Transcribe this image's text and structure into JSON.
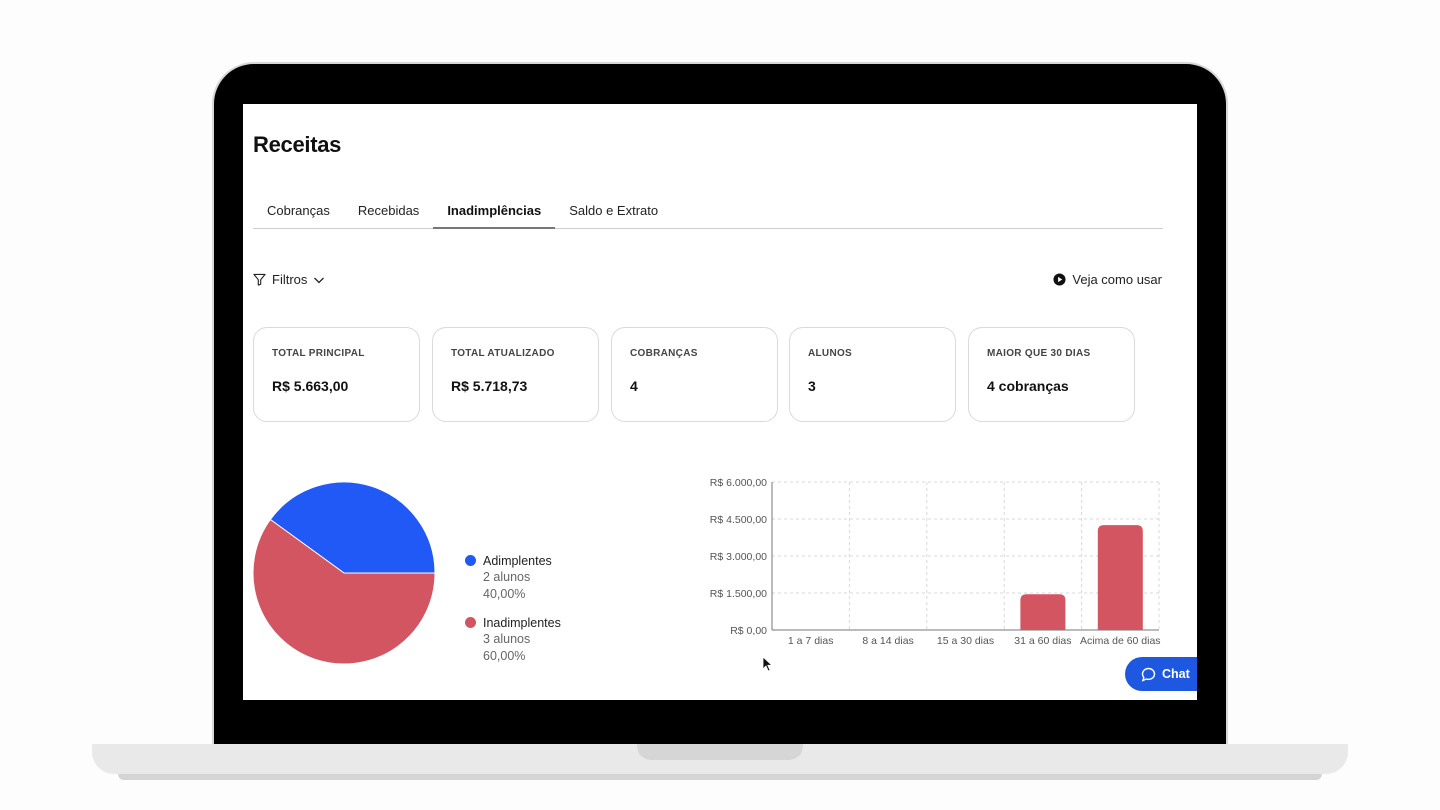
{
  "page": {
    "title": "Receitas",
    "tabs": [
      {
        "label": "Cobranças"
      },
      {
        "label": "Recebidas"
      },
      {
        "label": "Inadimplências",
        "active": true
      },
      {
        "label": "Saldo e Extrato"
      }
    ],
    "filters_label": "Filtros",
    "howto_label": "Veja como usar",
    "chat_label": "Chat"
  },
  "cards": [
    {
      "label": "TOTAL PRINCIPAL",
      "value": "R$ 5.663,00"
    },
    {
      "label": "TOTAL ATUALIZADO",
      "value": "R$ 5.718,73"
    },
    {
      "label": "COBRANÇAS",
      "value": "4"
    },
    {
      "label": "ALUNOS",
      "value": "3"
    },
    {
      "label": "MAIOR QUE 30 DIAS",
      "value": "4 cobranças"
    }
  ],
  "colors": {
    "adimplentes": "#2059f5",
    "inadimplentes": "#d35562",
    "chat": "#1f58e0"
  },
  "chart_data": [
    {
      "type": "pie",
      "slices": [
        {
          "label": "Adimplentes",
          "sub": "2 alunos",
          "percent_label": "40,00%",
          "value": 40,
          "color": "#2059f5"
        },
        {
          "label": "Inadimplentes",
          "sub": "3 alunos",
          "percent_label": "60,00%",
          "value": 60,
          "color": "#d35562"
        }
      ]
    },
    {
      "type": "bar",
      "categories": [
        "1 a 7 dias",
        "8 a 14 dias",
        "15 a 30 dias",
        "31 a 60 dias",
        "Acima de 60 dias"
      ],
      "values": [
        0,
        0,
        0,
        1450,
        4250
      ],
      "ylim": [
        0,
        6000
      ],
      "yticks": [
        0,
        1500,
        3000,
        4500,
        6000
      ],
      "ytick_labels": [
        "R$ 0,00",
        "R$ 1.500,00",
        "R$ 3.000,00",
        "R$ 4.500,00",
        "R$ 6.000,00"
      ],
      "grid": true,
      "color": "#d35562"
    }
  ]
}
